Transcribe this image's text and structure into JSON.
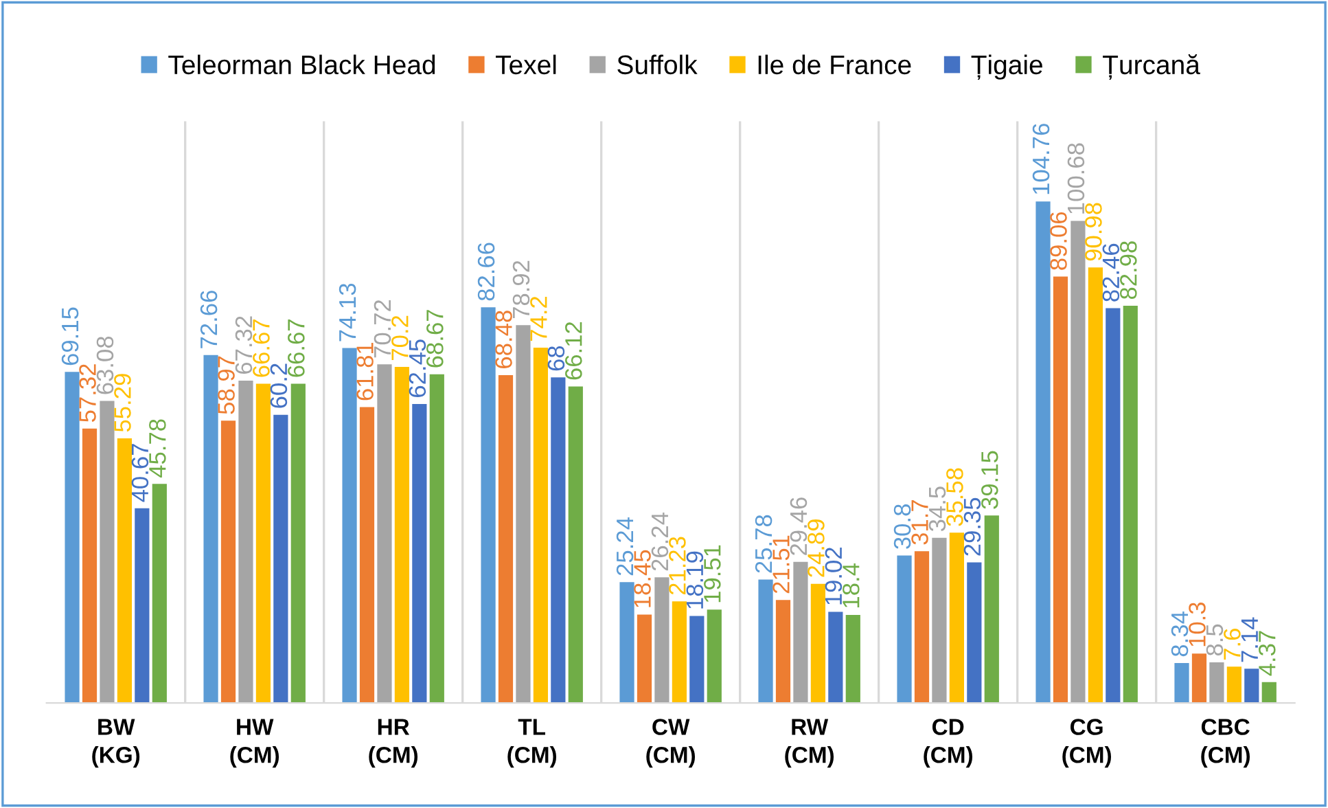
{
  "chart_data": {
    "type": "bar",
    "categories": [
      "BW\n(KG)",
      "HW\n(CM)",
      "HR\n(CM)",
      "TL\n(CM)",
      "CW\n(CM)",
      "RW\n(CM)",
      "CD\n(CM)",
      "CG\n(CM)",
      "CBC\n(CM)"
    ],
    "series": [
      {
        "name": "Teleorman Black Head",
        "color": "#5b9bd5",
        "values": [
          69.15,
          72.66,
          74.13,
          82.66,
          25.24,
          25.78,
          30.8,
          104.76,
          8.34
        ]
      },
      {
        "name": "Texel",
        "color": "#ed7d31",
        "values": [
          57.32,
          58.97,
          61.81,
          68.48,
          18.45,
          21.51,
          31.7,
          89.06,
          10.3
        ]
      },
      {
        "name": "Suffolk",
        "color": "#a5a5a5",
        "values": [
          63.08,
          67.32,
          70.72,
          78.92,
          26.24,
          29.46,
          34.5,
          100.68,
          8.5
        ]
      },
      {
        "name": "Ile de France",
        "color": "#ffc000",
        "values": [
          55.29,
          66.67,
          70.2,
          74.2,
          21.23,
          24.89,
          35.58,
          90.98,
          7.6
        ]
      },
      {
        "name": "Țigaie",
        "color": "#4472c4",
        "values": [
          40.67,
          60.2,
          62.45,
          68,
          18.19,
          19.02,
          29.35,
          82.46,
          7.14
        ]
      },
      {
        "name": "Țurcană",
        "color": "#70ad47",
        "values": [
          45.78,
          66.67,
          68.67,
          66.12,
          19.51,
          18.4,
          39.15,
          82.98,
          4.37
        ]
      }
    ],
    "data_labels": true,
    "legend": "top",
    "grid": "x"
  }
}
